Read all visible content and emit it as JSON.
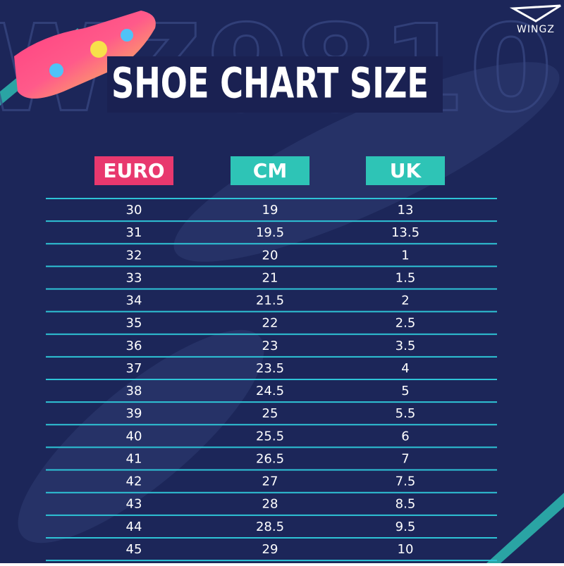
{
  "header": {
    "title": "SHOE CHART SIZE",
    "brand": "WINGZ",
    "watermark": "WZ9810"
  },
  "table": {
    "columns": [
      "EURO",
      "CM",
      "UK"
    ],
    "rows": [
      [
        "30",
        "19",
        "13"
      ],
      [
        "31",
        "19.5",
        "13.5"
      ],
      [
        "32",
        "20",
        "1"
      ],
      [
        "33",
        "21",
        "1.5"
      ],
      [
        "34",
        "21.5",
        "2"
      ],
      [
        "35",
        "22",
        "2.5"
      ],
      [
        "36",
        "23",
        "3.5"
      ],
      [
        "37",
        "23.5",
        "4"
      ],
      [
        "38",
        "24.5",
        "5"
      ],
      [
        "39",
        "25",
        "5.5"
      ],
      [
        "40",
        "25.5",
        "6"
      ],
      [
        "41",
        "26.5",
        "7"
      ],
      [
        "42",
        "27",
        "7.5"
      ],
      [
        "43",
        "28",
        "8.5"
      ],
      [
        "44",
        "28.5",
        "9.5"
      ],
      [
        "45",
        "29",
        "10"
      ]
    ]
  }
}
